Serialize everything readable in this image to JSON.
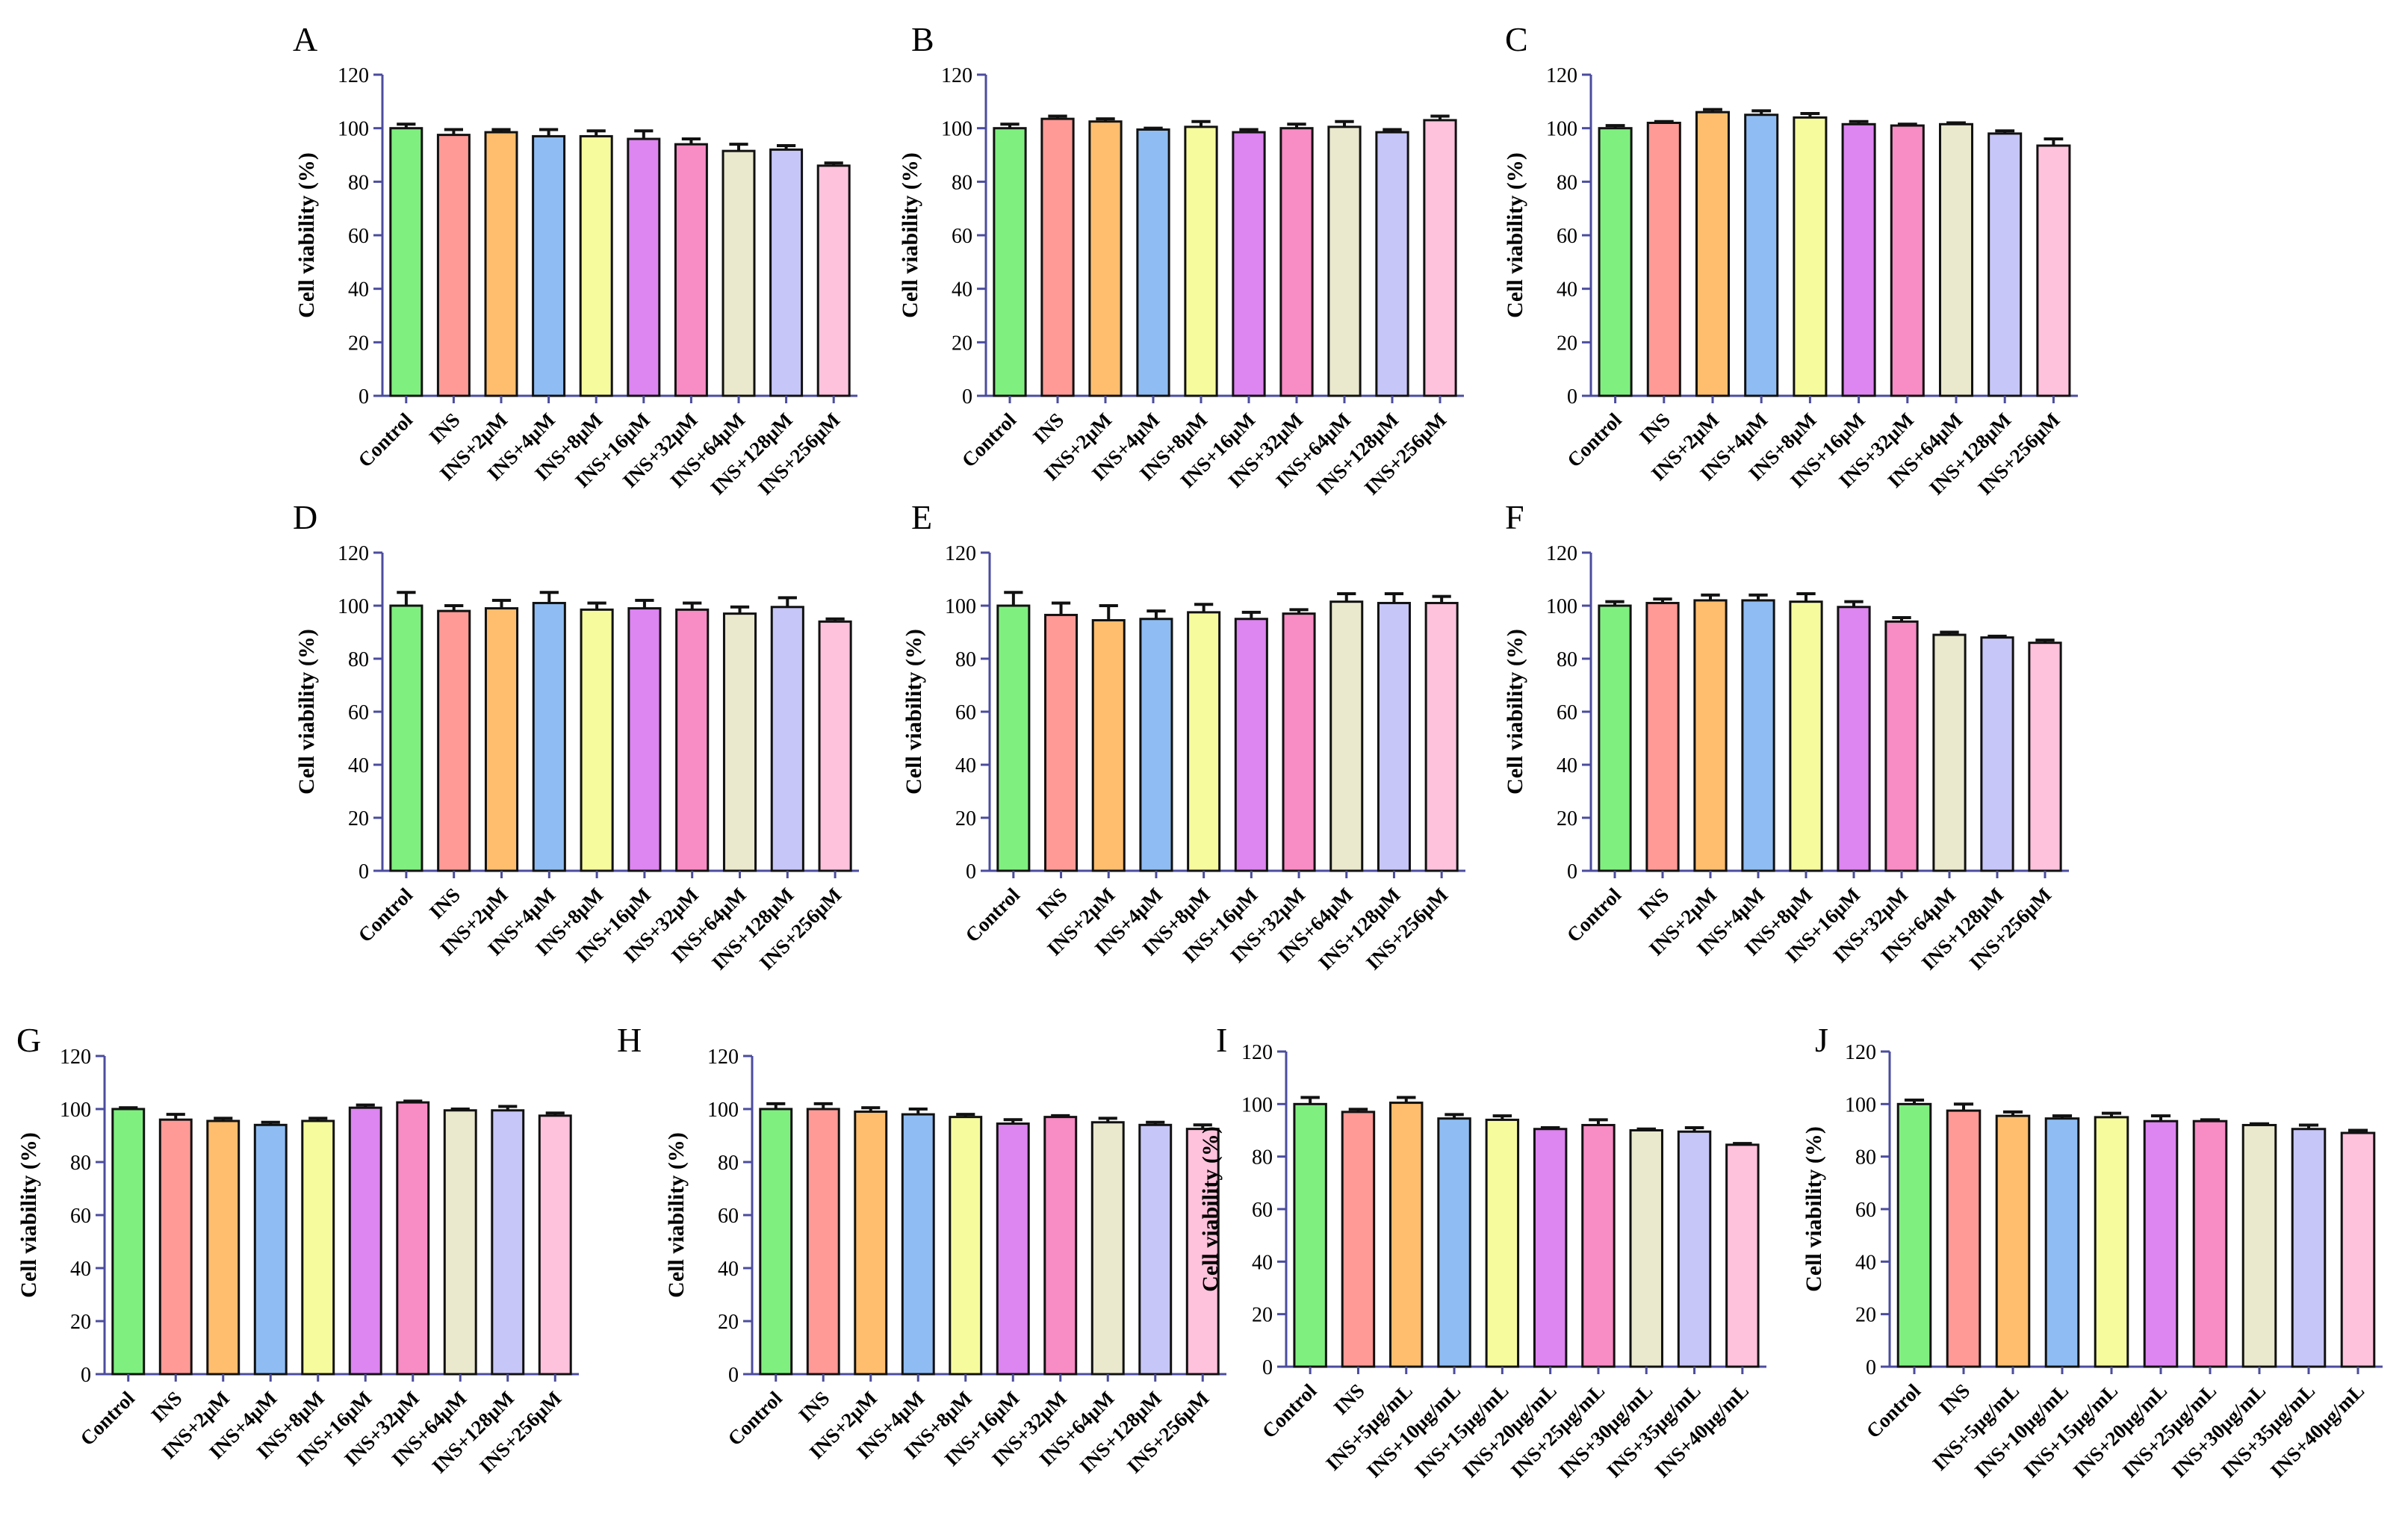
{
  "colors": [
    "#7ff07f",
    "#ff9a96",
    "#ffbe6e",
    "#8fbdf3",
    "#f6fb9d",
    "#dd85f1",
    "#f88cc4",
    "#eae8cd",
    "#c7c6f8",
    "#ffc2dc"
  ],
  "axis_color": "#4b4c9e",
  "chart_data": [
    {
      "panel": "A",
      "type": "bar",
      "ylabel": "Cell viability (%)",
      "ylim": [
        0,
        120
      ],
      "yticks": [
        0,
        20,
        40,
        60,
        80,
        100,
        120
      ],
      "categories": [
        "Control",
        "INS",
        "INS+2μM",
        "INS+4μM",
        "INS+8μM",
        "INS+16μM",
        "INS+32μM",
        "INS+64μM",
        "INS+128μM",
        "INS+256μM"
      ],
      "values": [
        100,
        97.5,
        98.5,
        97,
        97,
        96,
        94,
        91.5,
        92,
        86
      ],
      "errors": [
        1.5,
        2,
        1,
        2.5,
        2,
        3,
        2,
        2.5,
        1.5,
        1
      ]
    },
    {
      "panel": "B",
      "type": "bar",
      "ylabel": "Cell viability (%)",
      "ylim": [
        0,
        120
      ],
      "yticks": [
        0,
        20,
        40,
        60,
        80,
        100,
        120
      ],
      "categories": [
        "Control",
        "INS",
        "INS+2μM",
        "INS+4μM",
        "INS+8μM",
        "INS+16μM",
        "INS+32μM",
        "INS+64μM",
        "INS+128μM",
        "INS+256μM"
      ],
      "values": [
        100,
        103.5,
        102.5,
        99.5,
        100.5,
        98.5,
        100,
        100.5,
        98.5,
        103
      ],
      "errors": [
        1.5,
        1,
        1,
        0.5,
        2,
        1,
        1.5,
        2,
        1,
        1.5
      ]
    },
    {
      "panel": "C",
      "type": "bar",
      "ylabel": "Cell viability (%)",
      "ylim": [
        0,
        120
      ],
      "yticks": [
        0,
        20,
        40,
        60,
        80,
        100,
        120
      ],
      "categories": [
        "Control",
        "INS",
        "INS+2μM",
        "INS+4μM",
        "INS+8μM",
        "INS+16μM",
        "INS+32μM",
        "INS+64μM",
        "INS+128μM",
        "INS+256μM"
      ],
      "values": [
        100,
        102,
        106,
        105,
        104,
        101.5,
        101,
        101.5,
        98,
        93.5
      ],
      "errors": [
        1,
        0.5,
        1,
        1.5,
        1.5,
        1,
        0.5,
        0.5,
        1,
        2.5
      ]
    },
    {
      "panel": "D",
      "type": "bar",
      "ylabel": "Cell viability (%)",
      "ylim": [
        0,
        120
      ],
      "yticks": [
        0,
        20,
        40,
        60,
        80,
        100,
        120
      ],
      "categories": [
        "Control",
        "INS",
        "INS+2μM",
        "INS+4μM",
        "INS+8μM",
        "INS+16μM",
        "INS+32μM",
        "INS+64μM",
        "INS+128μM",
        "INS+256μM"
      ],
      "values": [
        100,
        98,
        99,
        101,
        98.5,
        99,
        98.5,
        97,
        99.5,
        94
      ],
      "errors": [
        5,
        2,
        3,
        4,
        2.5,
        3,
        2.5,
        2.5,
        3.5,
        1
      ]
    },
    {
      "panel": "E",
      "type": "bar",
      "ylabel": "Cell viability (%)",
      "ylim": [
        0,
        120
      ],
      "yticks": [
        0,
        20,
        40,
        60,
        80,
        100,
        120
      ],
      "categories": [
        "Control",
        "INS",
        "INS+2μM",
        "INS+4μM",
        "INS+8μM",
        "INS+16μM",
        "INS+32μM",
        "INS+64μM",
        "INS+128μM",
        "INS+256μM"
      ],
      "values": [
        100,
        96.5,
        94.5,
        95,
        97.5,
        95,
        97,
        101.5,
        101,
        101
      ],
      "errors": [
        5,
        4.5,
        5.5,
        3,
        3,
        2.5,
        1.5,
        3,
        3.5,
        2.5
      ]
    },
    {
      "panel": "F",
      "type": "bar",
      "ylabel": "Cell viability (%)",
      "ylim": [
        0,
        120
      ],
      "yticks": [
        0,
        20,
        40,
        60,
        80,
        100,
        120
      ],
      "categories": [
        "Control",
        "INS",
        "INS+2μM",
        "INS+4μM",
        "INS+8μM",
        "INS+16μM",
        "INS+32μM",
        "INS+64μM",
        "INS+128μM",
        "INS+256μM"
      ],
      "values": [
        100,
        101,
        102,
        102,
        101.5,
        99.5,
        94,
        89,
        88,
        86
      ],
      "errors": [
        1.5,
        1.5,
        2,
        2,
        3,
        2,
        1.5,
        1,
        0.5,
        1
      ]
    },
    {
      "panel": "G",
      "type": "bar",
      "ylabel": "Cell viability (%)",
      "ylim": [
        0,
        120
      ],
      "yticks": [
        0,
        20,
        40,
        60,
        80,
        100,
        120
      ],
      "categories": [
        "Control",
        "INS",
        "INS+2μM",
        "INS+4μM",
        "INS+8μM",
        "INS+16μM",
        "INS+32μM",
        "INS+64μM",
        "INS+128μM",
        "INS+256μM"
      ],
      "values": [
        100,
        96,
        95.5,
        94,
        95.5,
        100.5,
        102.5,
        99.5,
        99.5,
        97.5
      ],
      "errors": [
        0.5,
        2,
        1,
        1,
        1,
        1,
        0.5,
        0.5,
        1.5,
        1
      ]
    },
    {
      "panel": "H",
      "type": "bar",
      "ylabel": "Cell viability (%)",
      "ylim": [
        0,
        120
      ],
      "yticks": [
        0,
        20,
        40,
        60,
        80,
        100,
        120
      ],
      "categories": [
        "Control",
        "INS",
        "INS+2μM",
        "INS+4μM",
        "INS+8μM",
        "INS+16μM",
        "INS+32μM",
        "INS+64μM",
        "INS+128μM",
        "INS+256μM"
      ],
      "values": [
        100,
        100,
        99,
        98,
        97,
        94.5,
        97,
        95,
        94,
        92.5
      ],
      "errors": [
        2,
        2,
        1.5,
        2,
        1,
        1.5,
        0.5,
        1.5,
        1,
        1.5
      ]
    },
    {
      "panel": "I",
      "type": "bar",
      "ylabel": "Cell viability (%)",
      "ylim": [
        0,
        120
      ],
      "yticks": [
        0,
        20,
        40,
        60,
        80,
        100,
        120
      ],
      "categories": [
        "Control",
        "INS",
        "INS+5μg/mL",
        "INS+10μg/mL",
        "INS+15μg/mL",
        "INS+20μg/mL",
        "INS+25μg/mL",
        "INS+30μg/mL",
        "INS+35μg/mL",
        "INS+40μg/mL"
      ],
      "values": [
        100,
        97,
        100.5,
        94.5,
        94,
        90.5,
        92,
        90,
        89.5,
        84.5
      ],
      "errors": [
        2.5,
        1,
        2,
        1.5,
        1.5,
        0.5,
        2,
        0.5,
        1.5,
        0.5
      ]
    },
    {
      "panel": "J",
      "type": "bar",
      "ylabel": "Cell viability (%)",
      "ylim": [
        0,
        120
      ],
      "yticks": [
        0,
        20,
        40,
        60,
        80,
        100,
        120
      ],
      "categories": [
        "Control",
        "INS",
        "INS+5μg/mL",
        "INS+10μg/mL",
        "INS+15μg/mL",
        "INS+20μg/mL",
        "INS+25μg/mL",
        "INS+30μg/mL",
        "INS+35μg/mL",
        "INS+40μg/mL"
      ],
      "values": [
        100,
        97.5,
        95.5,
        94.5,
        95,
        93.5,
        93.5,
        92,
        90.5,
        89
      ],
      "errors": [
        1.5,
        2.5,
        1.5,
        1,
        1.5,
        2,
        0.5,
        0.5,
        1.5,
        1
      ]
    }
  ]
}
